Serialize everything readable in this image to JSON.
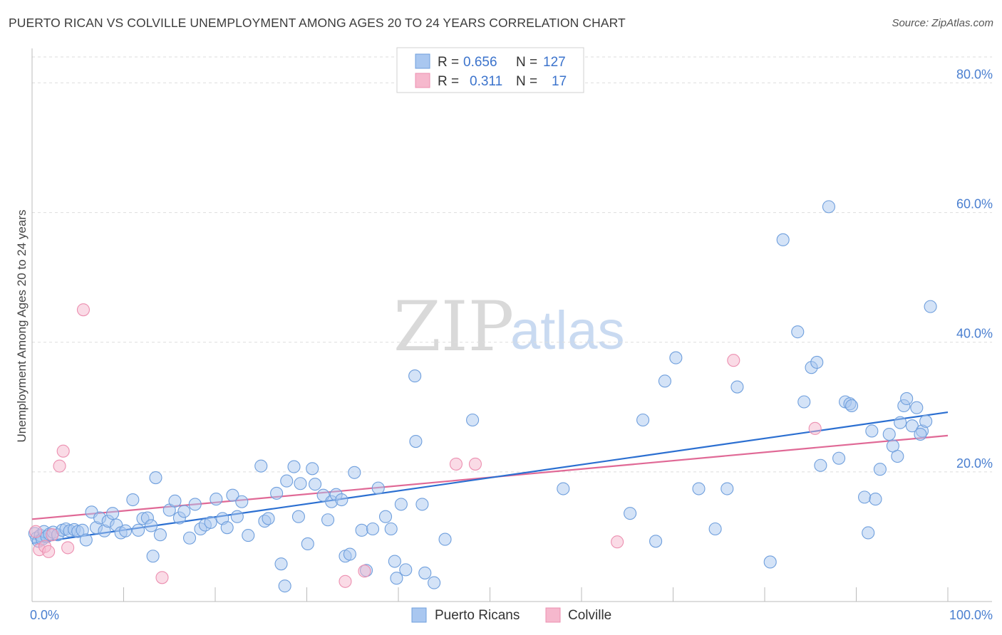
{
  "title": "PUERTO RICAN VS COLVILLE UNEMPLOYMENT AMONG AGES 20 TO 24 YEARS CORRELATION CHART",
  "source": "Source: ZipAtlas.com",
  "watermark": {
    "zip": "ZIP",
    "atlas": "atlas"
  },
  "colors": {
    "blue_fill": "#a9c7f0",
    "blue_stroke": "#6f9fdd",
    "blue_line": "#2b6fd1",
    "pink_fill": "#f6b8cd",
    "pink_stroke": "#ec8fb0",
    "pink_line": "#e06996",
    "tick_text": "#4a7fd0",
    "grid": "#dddddd"
  },
  "legend": {
    "rows": [
      {
        "r_label": "R =",
        "r_value": "0.656",
        "n_label": "N =",
        "n_value": "127"
      },
      {
        "r_label": "R =",
        "r_value": "0.311",
        "n_label": "N =",
        "n_value": "17"
      }
    ]
  },
  "chart_data": {
    "type": "scatter",
    "title": "PUERTO RICAN VS COLVILLE UNEMPLOYMENT AMONG AGES 20 TO 24 YEARS CORRELATION CHART",
    "xlabel": "",
    "ylabel": "Unemployment Among Ages 20 to 24 years",
    "xlim": [
      0,
      100
    ],
    "ylim": [
      0,
      84
    ],
    "x_tick_labels": [
      "0.0%",
      "100.0%"
    ],
    "y_ticks": [
      20,
      40,
      60,
      80
    ],
    "y_tick_labels": [
      "20.0%",
      "40.0%",
      "60.0%",
      "80.0%"
    ],
    "grid": true,
    "legend_position": "top-center",
    "series": [
      {
        "name": "Puerto Ricans",
        "trend": {
          "x": [
            0,
            100
          ],
          "y": [
            9.0,
            29.2
          ]
        },
        "points": [
          [
            0.3,
            10.5
          ],
          [
            0.5,
            9.8
          ],
          [
            0.7,
            9.3
          ],
          [
            0.9,
            10.2
          ],
          [
            1.1,
            9.6
          ],
          [
            1.3,
            10.8
          ],
          [
            1.6,
            10.0
          ],
          [
            1.9,
            10.4
          ],
          [
            2.3,
            10.7
          ],
          [
            2.8,
            10.3
          ],
          [
            3.3,
            11.0
          ],
          [
            3.7,
            11.2
          ],
          [
            4.1,
            10.9
          ],
          [
            4.6,
            11.1
          ],
          [
            5.0,
            10.8
          ],
          [
            5.5,
            11.0
          ],
          [
            5.9,
            9.5
          ],
          [
            6.5,
            13.8
          ],
          [
            7.0,
            11.4
          ],
          [
            7.4,
            12.9
          ],
          [
            7.9,
            10.9
          ],
          [
            8.3,
            12.4
          ],
          [
            8.8,
            13.6
          ],
          [
            9.2,
            11.8
          ],
          [
            9.7,
            10.6
          ],
          [
            10.2,
            10.9
          ],
          [
            11.0,
            15.7
          ],
          [
            11.6,
            11.0
          ],
          [
            12.1,
            12.8
          ],
          [
            12.6,
            12.9
          ],
          [
            13.0,
            11.7
          ],
          [
            13.5,
            19.1
          ],
          [
            14.0,
            10.3
          ],
          [
            13.2,
            7.0
          ],
          [
            15.0,
            14.1
          ],
          [
            15.6,
            15.5
          ],
          [
            16.1,
            12.9
          ],
          [
            16.6,
            13.9
          ],
          [
            17.2,
            9.8
          ],
          [
            17.8,
            15.0
          ],
          [
            18.4,
            11.2
          ],
          [
            18.9,
            11.8
          ],
          [
            19.5,
            12.2
          ],
          [
            20.1,
            15.8
          ],
          [
            20.8,
            12.8
          ],
          [
            21.3,
            11.4
          ],
          [
            21.9,
            16.4
          ],
          [
            22.4,
            13.1
          ],
          [
            22.9,
            15.4
          ],
          [
            23.6,
            10.2
          ],
          [
            25.4,
            12.4
          ],
          [
            25.0,
            20.9
          ],
          [
            25.8,
            12.8
          ],
          [
            26.7,
            16.7
          ],
          [
            27.2,
            5.8
          ],
          [
            27.8,
            18.6
          ],
          [
            27.6,
            2.4
          ],
          [
            28.6,
            20.8
          ],
          [
            29.1,
            13.1
          ],
          [
            29.3,
            18.2
          ],
          [
            30.1,
            8.9
          ],
          [
            30.6,
            20.5
          ],
          [
            30.9,
            18.1
          ],
          [
            31.8,
            16.4
          ],
          [
            32.3,
            12.6
          ],
          [
            32.7,
            15.4
          ],
          [
            33.2,
            16.5
          ],
          [
            33.8,
            15.7
          ],
          [
            34.2,
            7.0
          ],
          [
            34.7,
            7.3
          ],
          [
            35.2,
            19.9
          ],
          [
            36.0,
            11.0
          ],
          [
            36.5,
            4.8
          ],
          [
            37.2,
            11.2
          ],
          [
            37.8,
            17.5
          ],
          [
            38.6,
            13.1
          ],
          [
            39.2,
            11.2
          ],
          [
            39.6,
            6.2
          ],
          [
            39.8,
            3.6
          ],
          [
            40.3,
            15.0
          ],
          [
            40.8,
            4.9
          ],
          [
            41.8,
            34.8
          ],
          [
            41.9,
            24.7
          ],
          [
            42.6,
            15.0
          ],
          [
            42.9,
            4.4
          ],
          [
            43.9,
            2.9
          ],
          [
            45.1,
            9.6
          ],
          [
            48.1,
            28.0
          ],
          [
            58.0,
            17.4
          ],
          [
            65.3,
            13.6
          ],
          [
            66.7,
            28.0
          ],
          [
            68.1,
            9.3
          ],
          [
            69.1,
            34.0
          ],
          [
            70.3,
            37.6
          ],
          [
            72.8,
            17.4
          ],
          [
            74.6,
            11.2
          ],
          [
            75.9,
            17.4
          ],
          [
            77.0,
            33.1
          ],
          [
            80.6,
            6.1
          ],
          [
            82.0,
            55.8
          ],
          [
            83.6,
            41.6
          ],
          [
            84.3,
            30.8
          ],
          [
            85.1,
            36.1
          ],
          [
            85.7,
            36.9
          ],
          [
            86.1,
            21.0
          ],
          [
            87.0,
            60.9
          ],
          [
            88.1,
            22.1
          ],
          [
            88.8,
            30.8
          ],
          [
            89.3,
            30.5
          ],
          [
            89.5,
            30.2
          ],
          [
            90.9,
            16.1
          ],
          [
            91.3,
            10.6
          ],
          [
            91.7,
            26.3
          ],
          [
            92.1,
            15.8
          ],
          [
            92.6,
            20.4
          ],
          [
            94.0,
            24.0
          ],
          [
            94.5,
            22.4
          ],
          [
            94.8,
            27.6
          ],
          [
            95.2,
            30.2
          ],
          [
            95.5,
            31.3
          ],
          [
            96.1,
            27.1
          ],
          [
            96.6,
            29.9
          ],
          [
            97.2,
            26.3
          ],
          [
            97.6,
            27.8
          ],
          [
            98.1,
            45.5
          ],
          [
            97.0,
            25.8
          ],
          [
            93.6,
            25.8
          ]
        ]
      },
      {
        "name": "Colville",
        "trend": {
          "x": [
            0,
            100
          ],
          "y": [
            12.7,
            25.6
          ]
        },
        "points": [
          [
            0.4,
            10.8
          ],
          [
            0.8,
            8.0
          ],
          [
            1.4,
            8.5
          ],
          [
            1.8,
            7.7
          ],
          [
            2.2,
            10.3
          ],
          [
            3.0,
            20.9
          ],
          [
            3.4,
            23.2
          ],
          [
            3.9,
            8.3
          ],
          [
            5.6,
            45.0
          ],
          [
            14.2,
            3.7
          ],
          [
            34.2,
            3.1
          ],
          [
            36.3,
            4.7
          ],
          [
            46.3,
            21.2
          ],
          [
            48.4,
            21.2
          ],
          [
            63.9,
            9.2
          ],
          [
            76.6,
            37.2
          ],
          [
            85.5,
            26.7
          ]
        ]
      }
    ]
  }
}
